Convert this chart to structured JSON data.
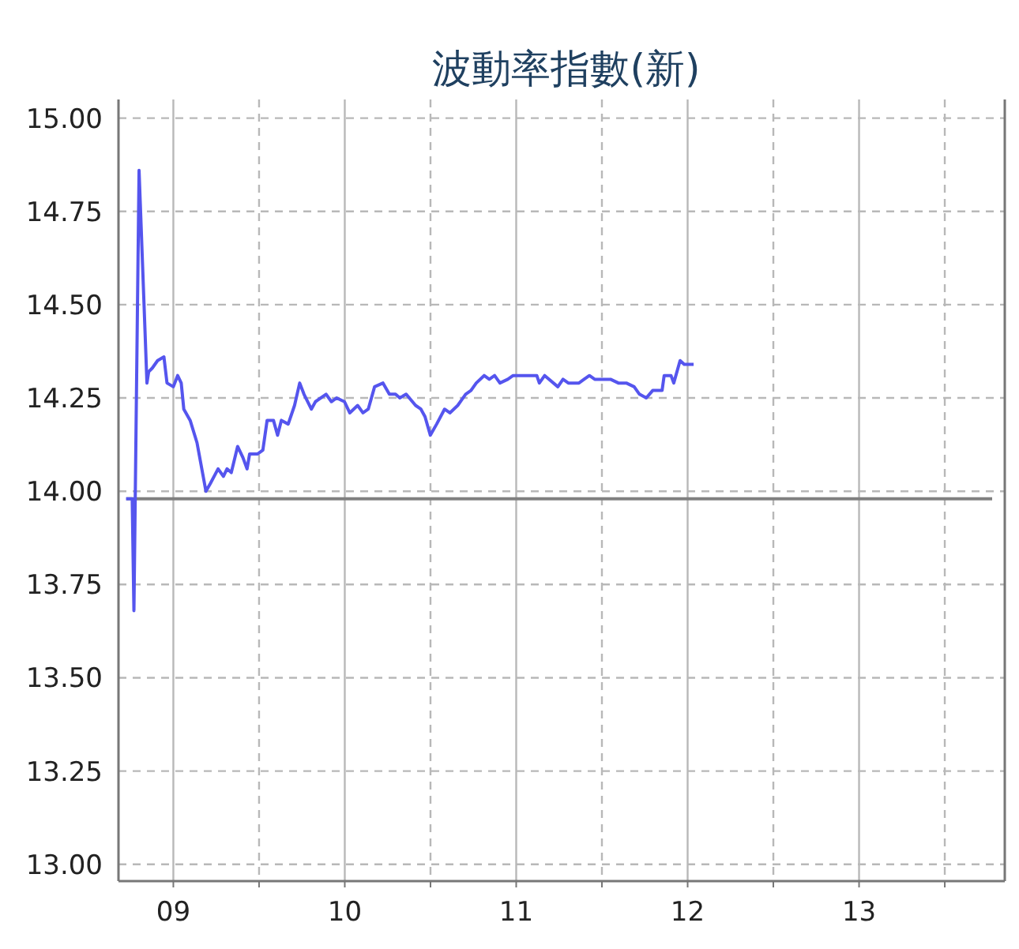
{
  "chart_data": {
    "type": "line",
    "title": "波動率指數(新)",
    "x": [
      8.724,
      8.76,
      8.77,
      8.8,
      8.846,
      8.856,
      8.877,
      8.908,
      8.945,
      8.963,
      9.0,
      9.025,
      9.046,
      9.061,
      9.098,
      9.138,
      9.19,
      9.215,
      9.261,
      9.292,
      9.313,
      9.338,
      9.375,
      9.406,
      9.43,
      9.445,
      9.492,
      9.522,
      9.547,
      9.584,
      9.608,
      9.63,
      9.67,
      9.707,
      9.737,
      9.762,
      9.805,
      9.829,
      9.891,
      9.922,
      9.952,
      9.998,
      10.029,
      10.075,
      10.106,
      10.137,
      10.174,
      10.223,
      10.26,
      10.296,
      10.321,
      10.358,
      10.413,
      10.444,
      10.468,
      10.499,
      10.536,
      10.582,
      10.613,
      10.659,
      10.705,
      10.736,
      10.767,
      10.813,
      10.843,
      10.874,
      10.905,
      10.951,
      10.982,
      11.028,
      11.12,
      11.135,
      11.166,
      11.243,
      11.273,
      11.304,
      11.366,
      11.396,
      11.427,
      11.458,
      11.55,
      11.596,
      11.642,
      11.688,
      11.719,
      11.759,
      11.796,
      11.851,
      11.863,
      11.903,
      11.919,
      11.956,
      11.98,
      12.005,
      12.035
    ],
    "series": [
      {
        "color": "#5555ee",
        "values": [
          13.98,
          13.98,
          13.68,
          14.86,
          14.29,
          14.32,
          14.33,
          14.35,
          14.36,
          14.29,
          14.28,
          14.31,
          14.29,
          14.22,
          14.19,
          14.13,
          14.0,
          14.02,
          14.06,
          14.04,
          14.06,
          14.05,
          14.12,
          14.09,
          14.06,
          14.1,
          14.1,
          14.11,
          14.19,
          14.19,
          14.15,
          14.19,
          14.18,
          14.23,
          14.29,
          14.26,
          14.22,
          14.24,
          14.26,
          14.24,
          14.25,
          14.24,
          14.21,
          14.23,
          14.21,
          14.22,
          14.28,
          14.29,
          14.26,
          14.26,
          14.25,
          14.26,
          14.23,
          14.22,
          14.2,
          14.15,
          14.18,
          14.22,
          14.21,
          14.23,
          14.26,
          14.27,
          14.29,
          14.31,
          14.3,
          14.31,
          14.29,
          14.3,
          14.31,
          14.31,
          14.31,
          14.29,
          14.31,
          14.28,
          14.3,
          14.29,
          14.29,
          14.3,
          14.31,
          14.3,
          14.3,
          14.29,
          14.29,
          14.28,
          14.26,
          14.25,
          14.27,
          14.27,
          14.31,
          14.31,
          14.29,
          14.35,
          14.34,
          14.34,
          14.34
        ]
      }
    ],
    "xlim": [
      8.68,
      13.85
    ],
    "xticks": [
      {
        "value": 9,
        "label": "09"
      },
      {
        "value": 9.5,
        "label": null
      },
      10,
      {
        "value": 10.5,
        "label": null
      },
      11,
      {
        "value": 11.5,
        "label": null
      },
      12,
      {
        "value": 12.5,
        "label": null
      },
      13,
      {
        "value": 13.5,
        "label": null
      }
    ],
    "ylim": [
      12.955,
      15.05
    ],
    "yticks": [
      {
        "value": 13,
        "label": "13.00"
      },
      {
        "value": 13.25,
        "label": "13.25"
      },
      {
        "value": 13.5,
        "label": "13.50"
      },
      {
        "value": 13.75,
        "label": "13.75"
      },
      {
        "value": 14,
        "label": "14.00"
      },
      {
        "value": 14.25,
        "label": "14.25"
      },
      {
        "value": 14.5,
        "label": "14.50"
      },
      {
        "value": 14.75,
        "label": "14.75"
      },
      {
        "value": 15,
        "label": "15.00"
      }
    ],
    "ref_lines": [
      {
        "axis": "y",
        "value": 13.98,
        "color": "#808080"
      }
    ],
    "grid": true,
    "marker": "none",
    "line_style": "solid"
  }
}
